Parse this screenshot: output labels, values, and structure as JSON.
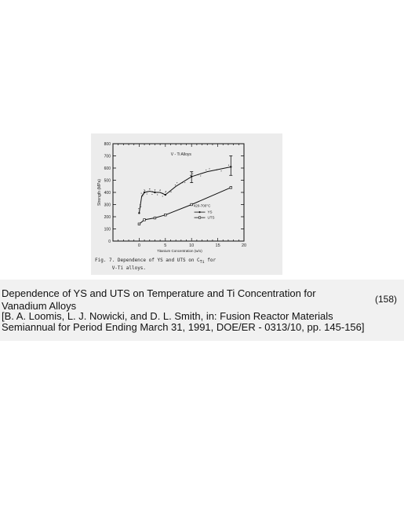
{
  "figure": {
    "caption_line1": "Fig. 7. Dependence of YS and UTS on C",
    "caption_sub": "Ti",
    "caption_line1_end": " for",
    "caption_line2": "V-Ti alloys."
  },
  "chart_data": {
    "type": "line",
    "title": "V - Ti Alloys",
    "xlabel": "Titanium Concentration (w/o)",
    "ylabel": "Strength (MPa)",
    "xlim": [
      -5,
      20
    ],
    "ylim": [
      0,
      800
    ],
    "x_ticks": [
      "0",
      "5",
      "10",
      "15",
      "20"
    ],
    "y_ticks": [
      "0",
      "100",
      "200",
      "300",
      "400",
      "500",
      "600",
      "700",
      "800"
    ],
    "legend": {
      "title": "420-700°C",
      "placement": "right-middle",
      "entries": [
        "YS",
        "UTS"
      ]
    },
    "series": [
      {
        "name": "UTS",
        "x": [
          0,
          0.5,
          1,
          2,
          3,
          4,
          5,
          7,
          10,
          13,
          17.5
        ],
        "y": [
          230,
          370,
          400,
          410,
          400,
          400,
          380,
          450,
          530,
          570,
          610
        ]
      },
      {
        "name": "YS",
        "x": [
          0,
          1,
          3,
          5,
          10,
          17.5
        ],
        "y": [
          140,
          175,
          190,
          215,
          300,
          440
        ]
      }
    ],
    "error_bars": [
      {
        "x": 10,
        "y_low": 480,
        "y_high": 570
      },
      {
        "x": 17.5,
        "y_low": 540,
        "y_high": 700
      }
    ],
    "grid": false
  },
  "text": {
    "line1": "Dependence of YS and UTS on Temperature and Ti Concentration for",
    "line2": "Vanadium Alloys",
    "page_number": "(158)",
    "line3": "[B. A. Loomis, L. J. Nowicki, and D. L. Smith, in: Fusion Reactor Materials",
    "line4": "Semiannual for Period Ending March 31, 1991, DOE/ER - 0313/10, pp. 145-156]"
  }
}
